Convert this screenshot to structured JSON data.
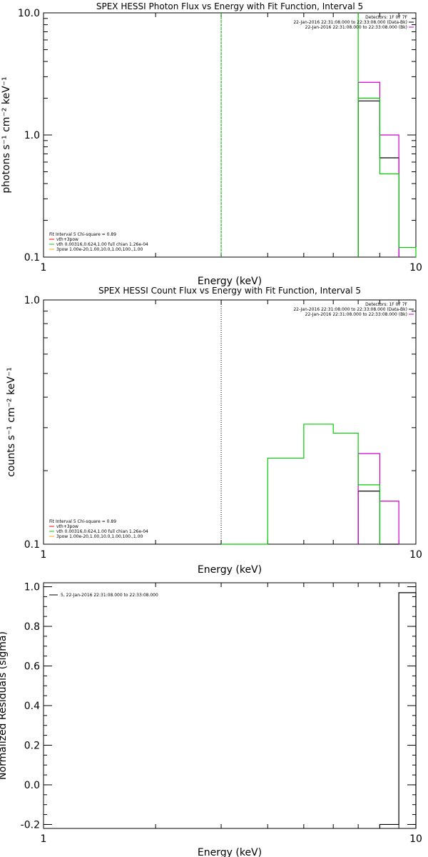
{
  "chart_data": [
    {
      "type": "step",
      "title": "SPEX HESSI Photon Flux vs Energy with Fit Function, Interval 5",
      "xlabel": "Energy (keV)",
      "ylabel": "photons s⁻¹ cm⁻² keV⁻¹",
      "xscale": "log",
      "yscale": "log",
      "xlim": [
        1,
        10
      ],
      "ylim": [
        0.1,
        10
      ],
      "x_ticks": [
        "1",
        "10"
      ],
      "y_ticks": [
        "0.1",
        "1.0",
        "10.0"
      ],
      "vertical_markers": [
        {
          "x": 3.0,
          "color": "#00aa00",
          "style": "dashed"
        }
      ],
      "legend_topright": [
        {
          "text": "Detectors: 1F 0F 7F",
          "color": null
        },
        {
          "text": "22-Jan-2016 22:31:08.000 to 22:33:08.000 (Data-Bk)",
          "color": "#000000"
        },
        {
          "text": "22-Jan-2016 22:31:08.000 to 22:33:08.000 (Bk)",
          "color": "#cc00cc"
        }
      ],
      "legend_bottomleft": [
        {
          "text": "Fit Interval 5   Chi-square = 0.89",
          "color": null
        },
        {
          "text": "vth+3pow",
          "color": "#ff0000"
        },
        {
          "text": "vth 0.00316,0.624,1.00  full chian 1.26e-04",
          "color": "#00cc00"
        },
        {
          "text": "3pow 1.00e-20,1.00,10.0,1.00,100.,1.00",
          "color": "#ffaa00"
        }
      ],
      "series": [
        {
          "name": "Data-Bk",
          "color": "#000000",
          "edges": [
            7.0,
            8.0,
            9.0
          ],
          "values": [
            1.9,
            0.65
          ]
        },
        {
          "name": "Bk",
          "color": "#cc00cc",
          "edges": [
            7.0,
            8.0,
            9.0
          ],
          "values": [
            2.7,
            1.0
          ]
        },
        {
          "name": "vth+3pow",
          "color": "#00cc00",
          "edges": [
            7.0,
            8.0,
            9.0,
            10.0
          ],
          "values": [
            2.0,
            0.48,
            0.12
          ],
          "spike_edge": 7.0
        }
      ]
    },
    {
      "type": "step",
      "title": "SPEX HESSI Count Flux vs Energy with Fit Function, Interval 5",
      "xlabel": "Energy (keV)",
      "ylabel": "counts s⁻¹ cm⁻² keV⁻¹",
      "xscale": "log",
      "yscale": "log",
      "xlim": [
        1,
        10
      ],
      "ylim": [
        0.1,
        1
      ],
      "x_ticks": [
        "1",
        "10"
      ],
      "y_ticks": [
        "0.1",
        "1.0"
      ],
      "vertical_markers": [
        {
          "x": 3.0,
          "color": "#000000",
          "style": "dotted"
        }
      ],
      "legend_topright": [
        {
          "text": "Detectors: 1F 0F 7F",
          "color": null
        },
        {
          "text": "22-Jan-2016 22:31:08.000 to 22:33:08.000 (Data-Bk)",
          "color": "#000000"
        },
        {
          "text": "22-Jan-2016 22:31:08.000 to 22:33:08.000 (Bk)",
          "color": "#cc00cc"
        }
      ],
      "legend_bottomleft": [
        {
          "text": "Fit Interval 5   Chi-square = 0.89",
          "color": null
        },
        {
          "text": "vth+3pow",
          "color": "#ff0000"
        },
        {
          "text": "vth 0.00316,0.624,1.00  full chian 1.26e-04",
          "color": "#00cc00"
        },
        {
          "text": "3pow 1.00e-20,1.00,10.0,1.00,100.,1.00",
          "color": "#ffaa00"
        }
      ],
      "series": [
        {
          "name": "Data-Bk",
          "color": "#000000",
          "edges": [
            7.0,
            8.0,
            9.0
          ],
          "values": [
            0.165,
            0.1
          ]
        },
        {
          "name": "Bk",
          "color": "#cc00cc",
          "edges": [
            7.0,
            8.0,
            9.0
          ],
          "values": [
            0.235,
            0.15
          ]
        },
        {
          "name": "vth+3pow",
          "color": "#00cc00",
          "edges": [
            3.0,
            4.0,
            5.0,
            6.0,
            7.0,
            8.0
          ],
          "values": [
            0.1,
            0.225,
            0.31,
            0.285,
            0.175
          ]
        }
      ]
    },
    {
      "type": "step",
      "title": "",
      "xlabel": "Energy (keV)",
      "ylabel": "Normalized Residuals (sigma)",
      "xscale": "log",
      "yscale": "linear",
      "xlim": [
        1,
        10
      ],
      "ylim": [
        -0.22,
        1.02
      ],
      "x_ticks": [
        "1",
        "10"
      ],
      "y_ticks": [
        "-0.2",
        "0.0",
        "0.2",
        "0.4",
        "0.6",
        "0.8",
        "1.0"
      ],
      "legend_topleft": [
        {
          "text": "5, 22-Jan-2016 22:31:08.000 to 22:33:08.000",
          "color": "#000000"
        }
      ],
      "series": [
        {
          "name": "",
          "color": "#000000",
          "edges": [
            8.0,
            9.0,
            10.0
          ],
          "values": [
            -0.2,
            0.97
          ]
        }
      ]
    }
  ]
}
